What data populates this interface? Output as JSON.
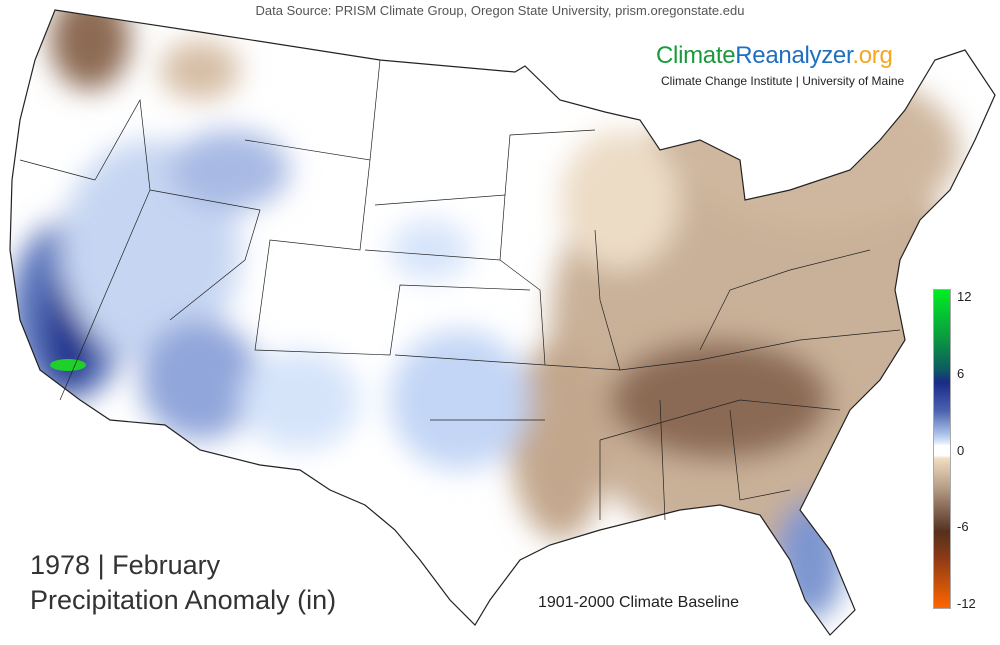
{
  "header": {
    "data_source": "Data Source: PRISM Climate Group, Oregon State University, prism.oregonstate.edu"
  },
  "logo": {
    "part1": "Climate",
    "part2": "Reanalyzer",
    "part3": ".org",
    "subtitle": "Climate Change Institute | University of Maine"
  },
  "title": {
    "line1": "1978 | February",
    "line2": "Precipitation Anomaly (in)"
  },
  "baseline": "1901-2000 Climate Baseline",
  "colorbar": {
    "ticks": [
      "12",
      "6",
      "0",
      "-6",
      "-12"
    ],
    "min": -12,
    "max": 12,
    "colors": {
      "wet_max": "#00ee22",
      "wet": "#1a2a88",
      "neutral": "#ffffff",
      "dry": "#55301e",
      "dry_max": "#ff6600"
    }
  }
}
